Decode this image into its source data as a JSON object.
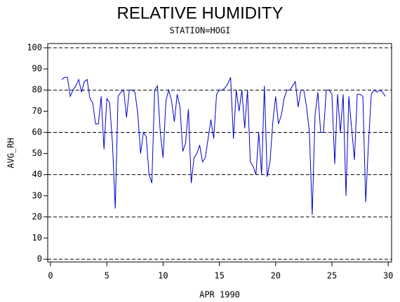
{
  "chart_data": {
    "type": "line",
    "title": "RELATIVE HUMIDITY",
    "subtitle": "STATION=HOGI",
    "x_label": "APR 1990",
    "y_label": "AVG_RH",
    "xlim": [
      -0.25,
      30.3
    ],
    "ylim": [
      -1.3,
      102
    ],
    "xticks": [
      0,
      5,
      10,
      15,
      20,
      25,
      30
    ],
    "yticks": [
      0,
      10,
      20,
      30,
      40,
      50,
      60,
      70,
      80,
      90,
      100
    ],
    "reference_lines": [
      0,
      20,
      40,
      60,
      80,
      100
    ],
    "x": [
      1.0,
      1.25,
      1.5,
      1.75,
      2.0,
      2.25,
      2.5,
      2.75,
      3.0,
      3.25,
      3.5,
      3.75,
      4.0,
      4.25,
      4.5,
      4.75,
      5.0,
      5.25,
      5.5,
      5.75,
      6.0,
      6.25,
      6.5,
      6.75,
      7.0,
      7.25,
      7.5,
      7.75,
      8.0,
      8.25,
      8.5,
      8.75,
      9.0,
      9.25,
      9.5,
      9.75,
      10.0,
      10.25,
      10.5,
      10.75,
      11.0,
      11.25,
      11.5,
      11.75,
      12.0,
      12.25,
      12.5,
      12.75,
      13.0,
      13.25,
      13.5,
      13.75,
      14.0,
      14.25,
      14.5,
      14.75,
      15.0,
      15.25,
      15.5,
      15.75,
      16.0,
      16.25,
      16.5,
      16.75,
      17.0,
      17.25,
      17.5,
      17.75,
      18.0,
      18.25,
      18.5,
      18.75,
      19.0,
      19.25,
      19.5,
      19.75,
      20.0,
      20.25,
      20.5,
      20.75,
      21.0,
      21.25,
      21.5,
      21.75,
      22.0,
      22.25,
      22.5,
      22.75,
      23.0,
      23.25,
      23.5,
      23.75,
      24.0,
      24.25,
      24.5,
      24.75,
      25.0,
      25.25,
      25.5,
      25.75,
      26.0,
      26.25,
      26.5,
      26.75,
      27.0,
      27.25,
      27.5,
      27.75,
      28.0,
      28.25,
      28.5,
      28.75,
      29.0,
      29.25,
      29.5,
      29.75
    ],
    "series": [
      {
        "name": "AVG_RH",
        "color": "#0000cc",
        "values": [
          85,
          86,
          86,
          77,
          80,
          82,
          85,
          79,
          84,
          85,
          76,
          74,
          64,
          64,
          77,
          52,
          76,
          74,
          55,
          24,
          77,
          79,
          80,
          67,
          80,
          80,
          79,
          69,
          50,
          60,
          58,
          40,
          36,
          80,
          82,
          60,
          48,
          75,
          80,
          75,
          65,
          78,
          72,
          51,
          55,
          71,
          36,
          48,
          50,
          54,
          46,
          48,
          57,
          66,
          57,
          78,
          80,
          80,
          81,
          83,
          86,
          57,
          80,
          70,
          80,
          62,
          80,
          46,
          44,
          40,
          60,
          40,
          82,
          39,
          46,
          65,
          77,
          64,
          68,
          76,
          80,
          80,
          82,
          84,
          72,
          80,
          80,
          72,
          60,
          21,
          68,
          79,
          60,
          60,
          80,
          80,
          78,
          45,
          78,
          60,
          78,
          30,
          77,
          62,
          47,
          78,
          78,
          77,
          27,
          55,
          78,
          80,
          79,
          80,
          79,
          77
        ]
      }
    ]
  }
}
